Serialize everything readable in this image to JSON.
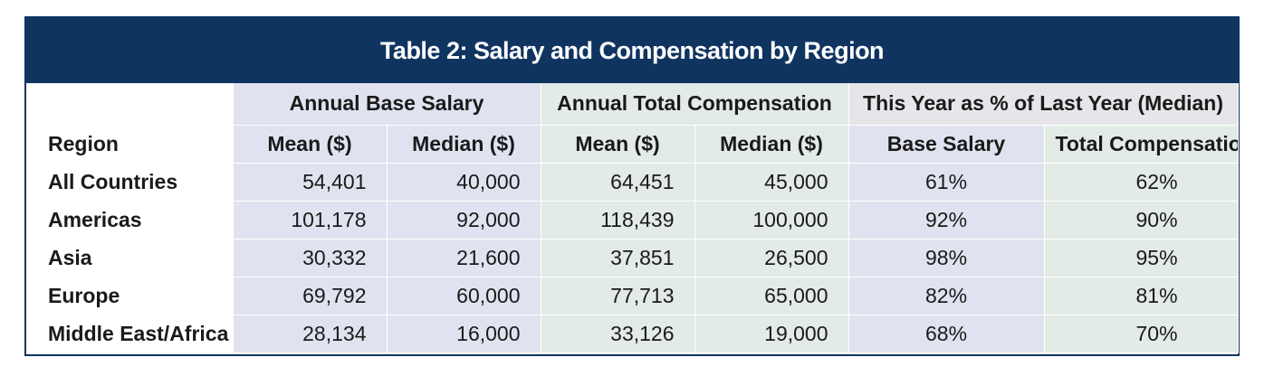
{
  "title": "Table 2: Salary and Compensation by Region",
  "groups": {
    "base_salary": "Annual Base Salary",
    "total_comp": "Annual Total Compensation",
    "pct_last_year": "This Year as % of Last Year (Median)"
  },
  "columns": [
    "Region",
    "Mean ($)",
    "Median ($)",
    "Mean ($)",
    "Median ($)",
    "Base Salary",
    "Total Compensation"
  ],
  "rows": [
    [
      "All Countries",
      "54,401",
      "40,000",
      "64,451",
      "45,000",
      "61%",
      "62%"
    ],
    [
      "Americas",
      "101,178",
      "92,000",
      "118,439",
      "100,000",
      "92%",
      "90%"
    ],
    [
      "Asia",
      "30,332",
      "21,600",
      "37,851",
      "26,500",
      "98%",
      "95%"
    ],
    [
      "Europe",
      "69,792",
      "60,000",
      "77,713",
      "65,000",
      "82%",
      "81%"
    ],
    [
      "Middle East/Africa",
      "28,134",
      "16,000",
      "33,126",
      "19,000",
      "68%",
      "70%"
    ]
  ],
  "colors": {
    "title_bar": "#0f3460",
    "base_salary_fill": "#e0e3ef",
    "total_comp_fill": "#e2ebe6",
    "pct_header_fill": "#e6e6ea"
  }
}
